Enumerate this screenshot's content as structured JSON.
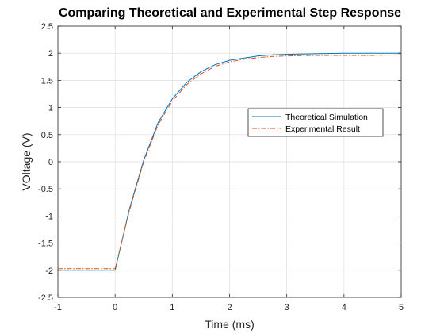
{
  "chart_data": {
    "type": "line",
    "title": "Comparing Theoretical and Experimental Step Response",
    "xlabel": "Time (ms)",
    "ylabel": "VOltage (V)",
    "xlim": [
      -1,
      5
    ],
    "ylim": [
      -2.5,
      2.5
    ],
    "xticks": [
      -1,
      0,
      1,
      2,
      3,
      4,
      5
    ],
    "yticks": [
      -2.5,
      -2,
      -1.5,
      -1,
      -0.5,
      0,
      0.5,
      1,
      1.5,
      2,
      2.5
    ],
    "grid": true,
    "legend_position": "right",
    "series": [
      {
        "name": "Theoretical Simulation",
        "color": "#0072BD",
        "line_style": "solid",
        "x": [
          -1,
          0,
          0,
          0.25,
          0.5,
          0.75,
          1,
          1.25,
          1.5,
          1.75,
          2,
          2.25,
          2.5,
          2.75,
          3,
          3.5,
          4,
          4.5,
          5
        ],
        "y": [
          -2,
          -2,
          -2,
          -0.87,
          0.03,
          0.72,
          1.16,
          1.46,
          1.66,
          1.79,
          1.87,
          1.91,
          1.95,
          1.97,
          1.98,
          1.99,
          2.0,
          2.0,
          2.0
        ]
      },
      {
        "name": "Experimental Result",
        "color": "#D95319",
        "line_style": "dash-dot",
        "x": [
          -1,
          0,
          0,
          0.25,
          0.5,
          0.75,
          1,
          1.25,
          1.5,
          1.75,
          2,
          2.25,
          2.5,
          2.75,
          3,
          3.5,
          4,
          4.5,
          5
        ],
        "y": [
          -1.97,
          -1.97,
          -1.97,
          -0.9,
          0.0,
          0.68,
          1.12,
          1.42,
          1.62,
          1.76,
          1.84,
          1.89,
          1.92,
          1.94,
          1.95,
          1.96,
          1.96,
          1.96,
          1.97
        ]
      }
    ]
  }
}
